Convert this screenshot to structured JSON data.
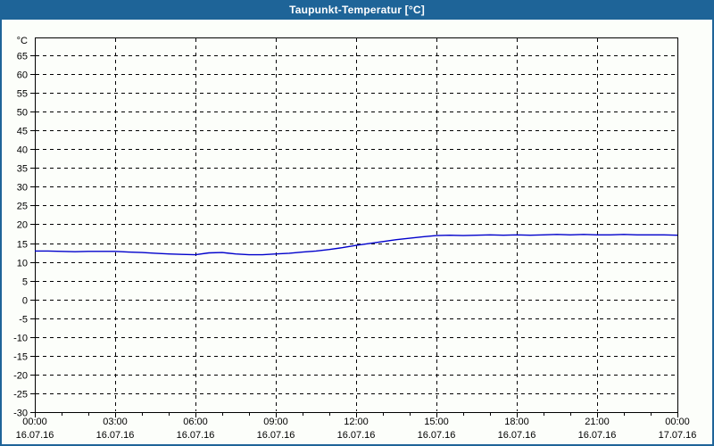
{
  "window": {
    "title": "Taupunkt-Temperatur [°C]"
  },
  "colors": {
    "titlebar_bg": "#1E6498",
    "titlebar_text": "#FFFFFF",
    "window_border": "#1E6498",
    "background": "#FCFEFA",
    "plot_border": "#000000",
    "gridline": "#000000",
    "axis_text": "#000000",
    "series_line": "#0000CC"
  },
  "chart_data": {
    "type": "line",
    "title": "Taupunkt-Temperatur [°C]",
    "y_unit_label": "°C",
    "xlabel": "",
    "ylabel": "°C",
    "ylim": [
      -30,
      69.75
    ],
    "y_ticks": [
      65,
      60,
      55,
      50,
      45,
      40,
      35,
      30,
      25,
      20,
      15,
      10,
      5,
      0,
      -5,
      -10,
      -15,
      -20,
      -25,
      -30
    ],
    "x_hours_range": [
      0,
      24
    ],
    "x_minor_tick_interval_hours": 1,
    "x_major_ticks": [
      {
        "hour": 0,
        "time": "00:00",
        "date": "16.07.16"
      },
      {
        "hour": 3,
        "time": "03:00",
        "date": "16.07.16"
      },
      {
        "hour": 6,
        "time": "06:00",
        "date": "16.07.16"
      },
      {
        "hour": 9,
        "time": "09:00",
        "date": "16.07.16"
      },
      {
        "hour": 12,
        "time": "12:00",
        "date": "16.07.16"
      },
      {
        "hour": 15,
        "time": "15:00",
        "date": "16.07.16"
      },
      {
        "hour": 18,
        "time": "18:00",
        "date": "16.07.16"
      },
      {
        "hour": 21,
        "time": "21:00",
        "date": "16.07.16"
      },
      {
        "hour": 24,
        "time": "00:00",
        "date": "17.07.16"
      }
    ],
    "grid": "dashed",
    "legend": "none",
    "series": [
      {
        "name": "Taupunkt-Temperatur",
        "color": "#0000CC",
        "points": [
          [
            0,
            12.9
          ],
          [
            0.5,
            12.9
          ],
          [
            1,
            12.8
          ],
          [
            1.5,
            12.7
          ],
          [
            2,
            12.8
          ],
          [
            2.5,
            12.8
          ],
          [
            3,
            12.8
          ],
          [
            3.5,
            12.6
          ],
          [
            4,
            12.5
          ],
          [
            4.5,
            12.3
          ],
          [
            5,
            12.1
          ],
          [
            5.5,
            12.0
          ],
          [
            6,
            11.9
          ],
          [
            6.5,
            12.4
          ],
          [
            7,
            12.5
          ],
          [
            7.5,
            12.1
          ],
          [
            8,
            11.9
          ],
          [
            8.5,
            11.9
          ],
          [
            9,
            12.1
          ],
          [
            9.5,
            12.3
          ],
          [
            10,
            12.6
          ],
          [
            10.5,
            12.9
          ],
          [
            11,
            13.3
          ],
          [
            11.5,
            13.8
          ],
          [
            12,
            14.4
          ],
          [
            12.5,
            14.9
          ],
          [
            13,
            15.4
          ],
          [
            13.5,
            15.9
          ],
          [
            14,
            16.3
          ],
          [
            14.5,
            16.7
          ],
          [
            15,
            17.0
          ],
          [
            15.5,
            17.1
          ],
          [
            16,
            17.0
          ],
          [
            16.5,
            17.1
          ],
          [
            17,
            17.2
          ],
          [
            17.5,
            17.1
          ],
          [
            18,
            17.2
          ],
          [
            18.5,
            17.1
          ],
          [
            19,
            17.2
          ],
          [
            19.5,
            17.3
          ],
          [
            20,
            17.2
          ],
          [
            20.5,
            17.3
          ],
          [
            21,
            17.2
          ],
          [
            21.5,
            17.2
          ],
          [
            22,
            17.3
          ],
          [
            22.5,
            17.2
          ],
          [
            23,
            17.2
          ],
          [
            23.5,
            17.2
          ],
          [
            24,
            17.1
          ]
        ]
      }
    ]
  }
}
